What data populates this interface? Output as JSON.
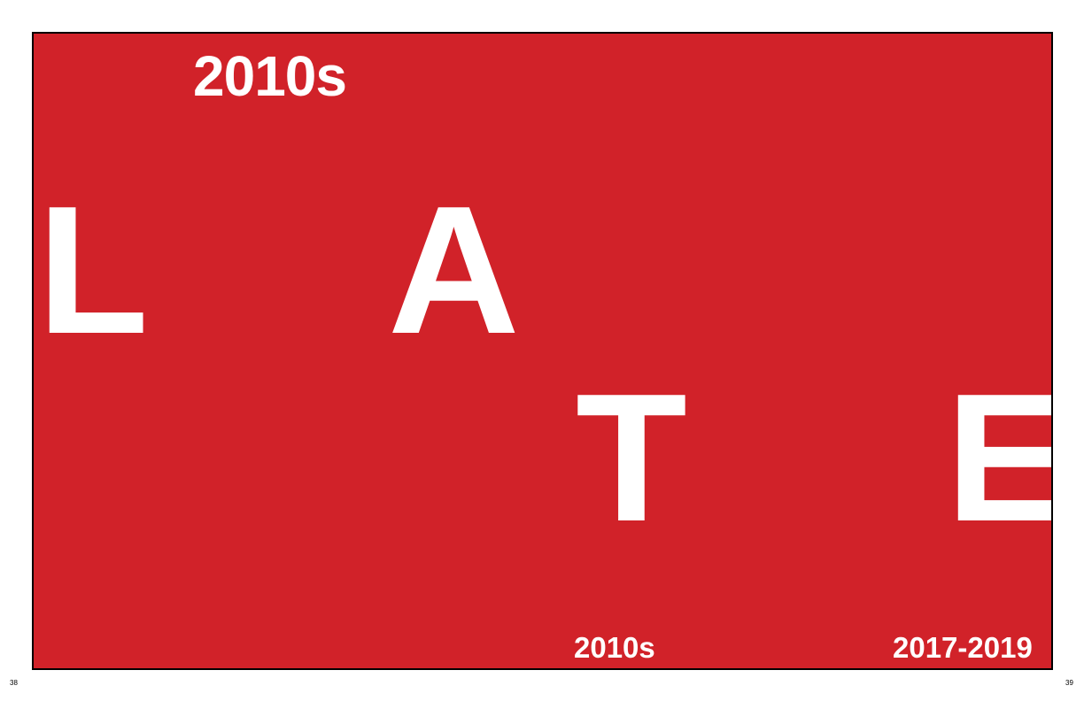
{
  "colors": {
    "panel_background": "#d12229",
    "panel_border": "#000000",
    "text": "#ffffff",
    "page_background": "#ffffff"
  },
  "spread": {
    "heading": "2010s",
    "letters": [
      "L",
      "A",
      "T",
      "E"
    ],
    "footer_decade": "2010s",
    "footer_years": "2017-2019"
  },
  "page_numbers": {
    "left": "38",
    "right": "39"
  }
}
